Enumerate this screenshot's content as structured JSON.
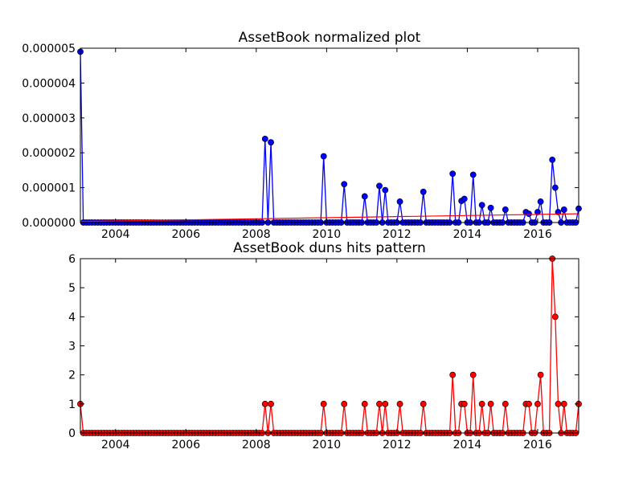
{
  "chart_data": [
    {
      "type": "line",
      "title": "AssetBook normalized plot",
      "xlabel": "",
      "ylabel": "",
      "x_range": [
        "2003-01",
        "2017-03"
      ],
      "ylim": [
        0,
        5e-06
      ],
      "x_tick_labels": [
        "2004",
        "2006",
        "2008",
        "2010",
        "2012",
        "2014",
        "2016"
      ],
      "y_tick_labels": [
        "0.000000",
        "0.000001",
        "0.000002",
        "0.000003",
        "0.000004",
        "0.000005"
      ],
      "grid": false,
      "series": [
        {
          "style": "line-with-markers",
          "color": "#0000ff",
          "marker_color": "#0000ff",
          "nonzero_points": [
            {
              "date": "2003-01",
              "value": 4.9e-06
            },
            {
              "date": "2008-04",
              "value": 2.4e-06
            },
            {
              "date": "2008-06",
              "value": 2.3e-06
            },
            {
              "date": "2009-12",
              "value": 1.9e-06
            },
            {
              "date": "2010-07",
              "value": 1.1e-06
            },
            {
              "date": "2011-02",
              "value": 7.5e-07
            },
            {
              "date": "2011-07",
              "value": 1.05e-06
            },
            {
              "date": "2011-09",
              "value": 9.3e-07
            },
            {
              "date": "2012-02",
              "value": 6e-07
            },
            {
              "date": "2012-10",
              "value": 8.8e-07
            },
            {
              "date": "2013-08",
              "value": 1.4e-06
            },
            {
              "date": "2013-11",
              "value": 6.2e-07
            },
            {
              "date": "2013-12",
              "value": 6.8e-07
            },
            {
              "date": "2014-03",
              "value": 1.37e-06
            },
            {
              "date": "2014-06",
              "value": 5e-07
            },
            {
              "date": "2014-09",
              "value": 4.2e-07
            },
            {
              "date": "2015-02",
              "value": 3.7e-07
            },
            {
              "date": "2015-09",
              "value": 3e-07
            },
            {
              "date": "2015-10",
              "value": 2.5e-07
            },
            {
              "date": "2016-01",
              "value": 3e-07
            },
            {
              "date": "2016-02",
              "value": 6e-07
            },
            {
              "date": "2016-06",
              "value": 1.8e-06
            },
            {
              "date": "2016-07",
              "value": 1e-06
            },
            {
              "date": "2016-08",
              "value": 3e-07
            },
            {
              "date": "2016-10",
              "value": 3.7e-07
            },
            {
              "date": "2017-03",
              "value": 4e-07
            }
          ]
        },
        {
          "style": "trend-line",
          "color": "#ff0000",
          "points": [
            {
              "date": "2003-01",
              "value": 3e-08
            },
            {
              "date": "2017-03",
              "value": 2.5e-07
            }
          ]
        }
      ]
    },
    {
      "type": "line",
      "title": "AssetBook duns hits pattern",
      "xlabel": "",
      "ylabel": "",
      "x_range": [
        "2003-01",
        "2017-03"
      ],
      "ylim": [
        0,
        6
      ],
      "x_tick_labels": [
        "2004",
        "2006",
        "2008",
        "2010",
        "2012",
        "2014",
        "2016"
      ],
      "y_tick_labels": [
        "0",
        "1",
        "2",
        "3",
        "4",
        "5",
        "6"
      ],
      "grid": false,
      "series": [
        {
          "style": "line-with-markers",
          "color": "#ff0000",
          "marker_color": "#ff0000",
          "nonzero_points": [
            {
              "date": "2003-01",
              "value": 1
            },
            {
              "date": "2008-04",
              "value": 1
            },
            {
              "date": "2008-06",
              "value": 1
            },
            {
              "date": "2009-12",
              "value": 1
            },
            {
              "date": "2010-07",
              "value": 1
            },
            {
              "date": "2011-02",
              "value": 1
            },
            {
              "date": "2011-07",
              "value": 1
            },
            {
              "date": "2011-09",
              "value": 1
            },
            {
              "date": "2012-02",
              "value": 1
            },
            {
              "date": "2012-10",
              "value": 1
            },
            {
              "date": "2013-08",
              "value": 2
            },
            {
              "date": "2013-11",
              "value": 1
            },
            {
              "date": "2013-12",
              "value": 1
            },
            {
              "date": "2014-03",
              "value": 2
            },
            {
              "date": "2014-06",
              "value": 1
            },
            {
              "date": "2014-09",
              "value": 1
            },
            {
              "date": "2015-02",
              "value": 1
            },
            {
              "date": "2015-09",
              "value": 1
            },
            {
              "date": "2015-10",
              "value": 1
            },
            {
              "date": "2016-01",
              "value": 1
            },
            {
              "date": "2016-02",
              "value": 2
            },
            {
              "date": "2016-06",
              "value": 6
            },
            {
              "date": "2016-07",
              "value": 4
            },
            {
              "date": "2016-08",
              "value": 1
            },
            {
              "date": "2016-10",
              "value": 1
            },
            {
              "date": "2017-03",
              "value": 1
            }
          ]
        }
      ]
    }
  ]
}
